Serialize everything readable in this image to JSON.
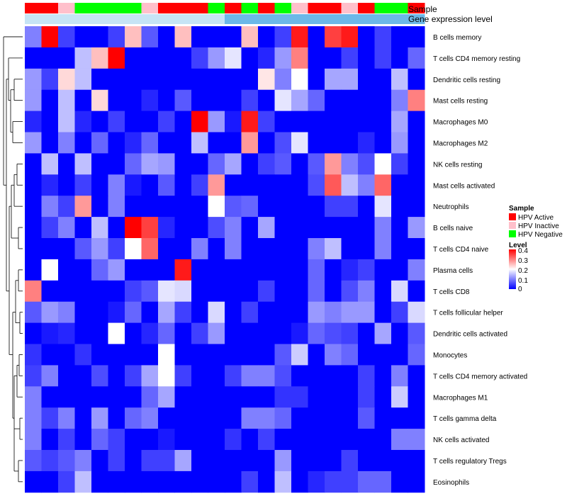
{
  "chart_data": {
    "type": "heatmap",
    "annotation_tracks": [
      "Sample",
      "Gene expression level"
    ],
    "columns": [
      {
        "sample": "HPV Active",
        "gene_expression_level": "low"
      },
      {
        "sample": "HPV Active",
        "gene_expression_level": "low"
      },
      {
        "sample": "HPV Inactive",
        "gene_expression_level": "low"
      },
      {
        "sample": "HPV Negative",
        "gene_expression_level": "low"
      },
      {
        "sample": "HPV Negative",
        "gene_expression_level": "low"
      },
      {
        "sample": "HPV Negative",
        "gene_expression_level": "low"
      },
      {
        "sample": "HPV Negative",
        "gene_expression_level": "low"
      },
      {
        "sample": "HPV Inactive",
        "gene_expression_level": "low"
      },
      {
        "sample": "HPV Active",
        "gene_expression_level": "low"
      },
      {
        "sample": "HPV Active",
        "gene_expression_level": "low"
      },
      {
        "sample": "HPV Active",
        "gene_expression_level": "low"
      },
      {
        "sample": "HPV Negative",
        "gene_expression_level": "low"
      },
      {
        "sample": "HPV Active",
        "gene_expression_level": "high"
      },
      {
        "sample": "HPV Negative",
        "gene_expression_level": "high"
      },
      {
        "sample": "HPV Active",
        "gene_expression_level": "high"
      },
      {
        "sample": "HPV Negative",
        "gene_expression_level": "high"
      },
      {
        "sample": "HPV Inactive",
        "gene_expression_level": "high"
      },
      {
        "sample": "HPV Active",
        "gene_expression_level": "high"
      },
      {
        "sample": "HPV Active",
        "gene_expression_level": "high"
      },
      {
        "sample": "HPV Inactive",
        "gene_expression_level": "high"
      },
      {
        "sample": "HPV Active",
        "gene_expression_level": "high"
      },
      {
        "sample": "HPV Negative",
        "gene_expression_level": "high"
      },
      {
        "sample": "HPV Negative",
        "gene_expression_level": "high"
      },
      {
        "sample": "HPV Active",
        "gene_expression_level": "high"
      }
    ],
    "gene_expression_level_colors": {
      "low": "#c6e4f5",
      "high": "#6cb8e8"
    },
    "rows": [
      "B cells memory",
      "T cells CD4 memory resting",
      "Dendritic cells resting",
      "Mast cells resting",
      "Macrophages M0",
      "Macrophages M2",
      "NK cells resting",
      "Mast cells activated",
      "Neutrophils",
      "B cells naive",
      "T cells CD4 naive",
      "Plasma cells",
      "T cells CD8",
      "T cells follicular helper",
      "Dendritic cells activated",
      "Monocytes",
      "T cells CD4 memory activated",
      "Macrophages M1",
      "T cells gamma delta",
      "NK cells activated",
      "T cells regulatory  Tregs",
      "Eosinophils"
    ],
    "values": [
      [
        0.1,
        0.4,
        0.05,
        0,
        0,
        0.05,
        0.25,
        0.07,
        0,
        0.25,
        0,
        0,
        0,
        0.25,
        0,
        0.05,
        0.38,
        0,
        0.35,
        0.38,
        0,
        0.05,
        0,
        0
      ],
      [
        0,
        0,
        0,
        0.15,
        0.25,
        0.4,
        0,
        0,
        0,
        0,
        0.05,
        0.12,
        0.18,
        0,
        0.03,
        0.12,
        0.3,
        0,
        0,
        0.05,
        0,
        0.05,
        0,
        0.08
      ],
      [
        0.12,
        0.05,
        0.23,
        0.15,
        0,
        0,
        0,
        0,
        0,
        0,
        0,
        0,
        0,
        0,
        0.22,
        0.1,
        0.2,
        0,
        0.13,
        0.13,
        0,
        0,
        0.15,
        0
      ],
      [
        0.12,
        0,
        0.15,
        0,
        0.23,
        0,
        0,
        0.03,
        0,
        0.07,
        0,
        0,
        0,
        0.05,
        0,
        0.18,
        0.13,
        0.08,
        0,
        0,
        0,
        0,
        0.1,
        0.3
      ],
      [
        0.03,
        0,
        0.15,
        0.03,
        0,
        0.05,
        0,
        0,
        0.05,
        0,
        0.4,
        0.12,
        0.02,
        0.38,
        0.05,
        0,
        0,
        0,
        0,
        0,
        0,
        0,
        0.13,
        0
      ],
      [
        0.12,
        0,
        0.1,
        0,
        0.08,
        0,
        0.03,
        0.08,
        0,
        0,
        0.15,
        0,
        0,
        0.28,
        0,
        0.06,
        0.18,
        0,
        0,
        0,
        0.03,
        0,
        0.12,
        0
      ],
      [
        0,
        0.15,
        0,
        0.15,
        0,
        0,
        0.08,
        0.13,
        0.12,
        0,
        0,
        0.08,
        0.13,
        0,
        0.05,
        0.07,
        0,
        0.07,
        0.28,
        0.1,
        0.06,
        0.2,
        0.05,
        0
      ],
      [
        0,
        0.03,
        0,
        0.05,
        0,
        0.1,
        0.02,
        0,
        0.07,
        0,
        0.05,
        0.28,
        0,
        0,
        0,
        0,
        0,
        0.06,
        0.33,
        0.15,
        0.1,
        0.32,
        0,
        0
      ],
      [
        0,
        0.1,
        0.05,
        0.28,
        0,
        0.1,
        0,
        0,
        0,
        0,
        0,
        0.2,
        0.07,
        0.08,
        0,
        0,
        0,
        0,
        0.05,
        0.05,
        0,
        0.18,
        0,
        0
      ],
      [
        0,
        0.05,
        0.1,
        0,
        0.15,
        0,
        0.4,
        0.35,
        0.03,
        0,
        0,
        0.06,
        0.1,
        0,
        0.13,
        0,
        0,
        0,
        0,
        0,
        0,
        0.1,
        0,
        0.12
      ],
      [
        0,
        0,
        0,
        0.07,
        0.12,
        0.05,
        0.2,
        0.32,
        0,
        0,
        0.1,
        0,
        0.1,
        0,
        0,
        0,
        0,
        0.1,
        0.15,
        0,
        0,
        0.1,
        0,
        0
      ],
      [
        0,
        0.2,
        0,
        0,
        0.08,
        0.12,
        0,
        0,
        0,
        0.38,
        0,
        0,
        0,
        0,
        0,
        0,
        0,
        0.08,
        0,
        0.03,
        0.05,
        0,
        0,
        0.1
      ],
      [
        0.3,
        0,
        0,
        0,
        0,
        0,
        0.05,
        0.07,
        0.18,
        0.17,
        0,
        0,
        0,
        0,
        0.05,
        0,
        0,
        0.08,
        0,
        0.06,
        0.1,
        0,
        0.17,
        0
      ],
      [
        0.07,
        0.12,
        0.1,
        0,
        0,
        0.02,
        0.08,
        0,
        0.13,
        0.05,
        0,
        0.17,
        0,
        0.05,
        0,
        0,
        0,
        0.12,
        0.1,
        0.12,
        0.12,
        0,
        0.05,
        0.17
      ],
      [
        0,
        0.02,
        0.03,
        0,
        0,
        0.2,
        0,
        0.03,
        0.08,
        0,
        0.05,
        0.12,
        0,
        0,
        0,
        0,
        0.02,
        0.08,
        0.06,
        0.05,
        0,
        0.13,
        0,
        0.07
      ],
      [
        0.04,
        0,
        0,
        0.04,
        0,
        0,
        0,
        0,
        0.2,
        0,
        0,
        0,
        0,
        0,
        0,
        0.07,
        0.16,
        0,
        0.1,
        0.08,
        0,
        0,
        0,
        0.08
      ],
      [
        0.05,
        0.1,
        0,
        0,
        0.06,
        0,
        0.05,
        0.13,
        0.2,
        0.05,
        0,
        0,
        0.05,
        0.1,
        0.1,
        0.06,
        0,
        0,
        0,
        0,
        0.05,
        0,
        0.1,
        0
      ],
      [
        0.1,
        0,
        0,
        0,
        0,
        0,
        0,
        0.08,
        0.13,
        0,
        0,
        0,
        0,
        0,
        0,
        0.04,
        0.04,
        0,
        0,
        0,
        0.05,
        0,
        0.16,
        0
      ],
      [
        0.1,
        0.05,
        0.1,
        0,
        0.12,
        0,
        0.08,
        0.1,
        0,
        0,
        0,
        0,
        0,
        0.1,
        0.1,
        0.08,
        0,
        0,
        0,
        0,
        0.07,
        0,
        0,
        0
      ],
      [
        0.1,
        0,
        0.05,
        0,
        0.08,
        0.05,
        0,
        0,
        0.02,
        0,
        0,
        0,
        0.04,
        0,
        0.05,
        0,
        0,
        0,
        0,
        0,
        0,
        0,
        0.1,
        0.1
      ],
      [
        0.07,
        0.05,
        0.07,
        0.1,
        0,
        0.05,
        0,
        0.05,
        0.05,
        0.13,
        0,
        0,
        0,
        0,
        0,
        0.12,
        0,
        0,
        0,
        0.05,
        0,
        0,
        0,
        0
      ],
      [
        0,
        0,
        0.05,
        0.15,
        0,
        0,
        0,
        0,
        0,
        0,
        0,
        0,
        0,
        0.05,
        0,
        0.15,
        0,
        0.03,
        0.05,
        0.05,
        0.08,
        0.08,
        0,
        0
      ]
    ],
    "annotation_legend": {
      "title": "Sample",
      "items": [
        {
          "label": "HPV Active",
          "color": "#ff0000"
        },
        {
          "label": "HPV Inactive",
          "color": "#ffc0cb"
        },
        {
          "label": "HPV Negative",
          "color": "#00ff00"
        }
      ]
    },
    "color_scale": {
      "title": "Level",
      "range": [
        0,
        0.4
      ],
      "ticks": [
        "0.4",
        "0.3",
        "0.2",
        "0.1",
        "0"
      ],
      "colors": {
        "low": "#0000ff",
        "mid": "#ffffff",
        "high": "#ff0000"
      }
    }
  }
}
